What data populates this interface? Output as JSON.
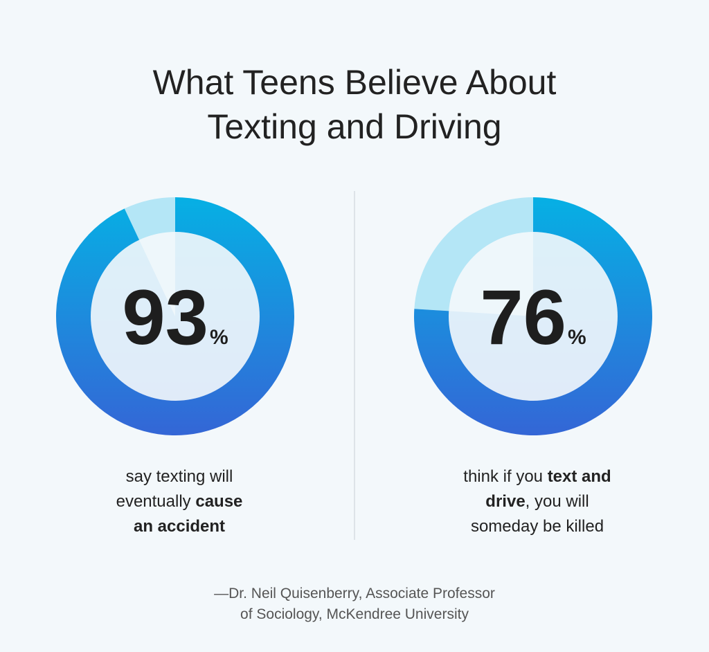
{
  "title": [
    "What Teens Believe About",
    "Texting and Driving"
  ],
  "chart_data": [
    {
      "type": "donut",
      "values": [
        93
      ],
      "unit": "%",
      "colors": [
        "#06b0e4",
        "#3466d6"
      ],
      "remainder_color": "#b4e6f6",
      "caption": [
        [
          {
            "text": "say texting will",
            "bold": false
          }
        ],
        [
          {
            "text": "eventually ",
            "bold": false
          },
          {
            "text": "cause",
            "bold": true
          }
        ],
        [
          {
            "text": "an accident",
            "bold": true
          }
        ]
      ]
    },
    {
      "type": "donut",
      "values": [
        76
      ],
      "unit": "%",
      "colors": [
        "#06b0e4",
        "#3466d6"
      ],
      "remainder_color": "#b4e6f6",
      "caption": [
        [
          {
            "text": "think if you ",
            "bold": false
          },
          {
            "text": "text and",
            "bold": true
          }
        ],
        [
          {
            "text": "drive",
            "bold": true
          },
          {
            "text": ", you will",
            "bold": false
          }
        ],
        [
          {
            "text": "someday be killed",
            "bold": false
          }
        ]
      ]
    }
  ],
  "source": [
    "—Dr. Neil Quisenberry, Associate Professor",
    "of Sociology, McKendree University"
  ]
}
